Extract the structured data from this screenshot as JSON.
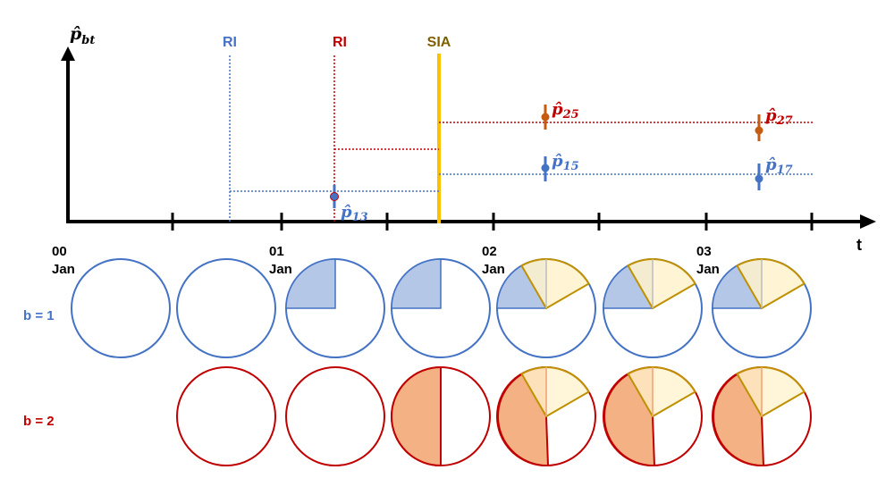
{
  "axis": {
    "y_label_main": "p̂",
    "y_label_sub": "bt",
    "x_label": "t"
  },
  "ticks": [
    {
      "num": "00",
      "month": "Jan"
    },
    {
      "num": "01",
      "month": "Jan"
    },
    {
      "num": "02",
      "month": "Jan"
    },
    {
      "num": "03",
      "month": "Jan"
    }
  ],
  "events": {
    "ri_b1": "RI",
    "ri_b2": "RI",
    "sia": "SIA"
  },
  "points": {
    "p13": {
      "main": "p̂",
      "sub": "13"
    },
    "p15": {
      "main": "p̂",
      "sub": "15"
    },
    "p17": {
      "main": "p̂",
      "sub": "17"
    },
    "p25": {
      "main": "p̂",
      "sub": "25"
    },
    "p27": {
      "main": "p̂",
      "sub": "27"
    }
  },
  "rows": {
    "b1": "b = 1",
    "b2": "b = 2"
  },
  "colors": {
    "blue": "#4472c4",
    "red": "#c00000",
    "gold": "#ffc000",
    "gold_dark": "#7f6000",
    "orange_point": "#c55a11",
    "blue_fill": "#b4c7e7",
    "red_fill": "#f4b183",
    "yellow_fill": "#fff2cc",
    "yellow_stroke": "#bf9000"
  }
}
